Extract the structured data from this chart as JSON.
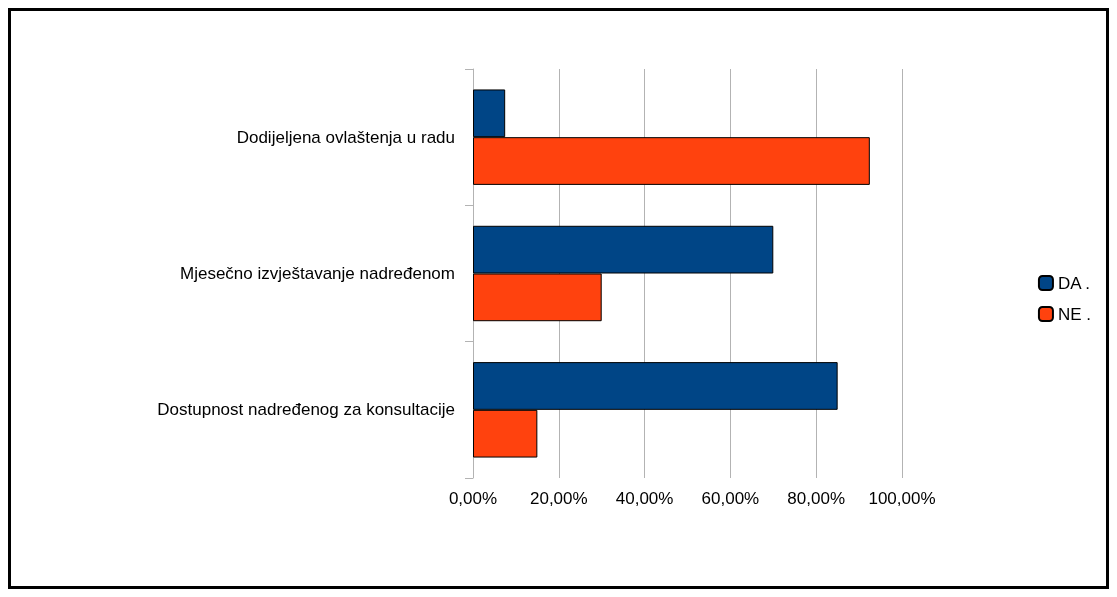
{
  "chart_data": {
    "type": "bar",
    "orientation": "horizontal",
    "categories": [
      "Dodijeljena ovlaštenja u radu",
      "Mjesečno izvještavanje nadređenom",
      "Dostupnost nadređenog za konsultacije"
    ],
    "series": [
      {
        "name": "DA .",
        "color": "#004586",
        "values": [
          7.5,
          70,
          85
        ]
      },
      {
        "name": "NE .",
        "color": "#ff420e",
        "values": [
          92.5,
          30,
          15
        ]
      }
    ],
    "xlim": [
      0,
      100
    ],
    "xticks": [
      {
        "value": 0,
        "label": "0,00%"
      },
      {
        "value": 20,
        "label": "20,00%"
      },
      {
        "value": 40,
        "label": "40,00%"
      },
      {
        "value": 60,
        "label": "60,00%"
      },
      {
        "value": 80,
        "label": "80,00%"
      },
      {
        "value": 100,
        "label": "100,00%"
      }
    ],
    "grid": "x",
    "legend": "right"
  }
}
